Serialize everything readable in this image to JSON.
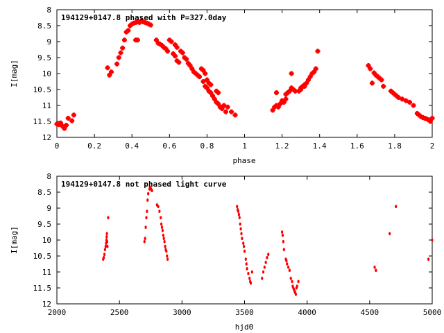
{
  "chart_data": [
    {
      "type": "scatter",
      "title": "194129+0147.8 phased with P=327.0day",
      "xlabel": "phase",
      "ylabel": "I[mag]",
      "xlim": [
        0,
        2
      ],
      "ylim": [
        12,
        8
      ],
      "y_inverted": true,
      "grid": false,
      "legend": "none",
      "marker_color": "#ff0000",
      "marker": "filled-square",
      "xticks": [
        0,
        0.2,
        0.4,
        0.6,
        0.8,
        1,
        1.2,
        1.4,
        1.6,
        1.8,
        2
      ],
      "xtick_labels": [
        "0",
        "0.2",
        "0.4",
        "0.6",
        "0.8",
        "1",
        "1.2",
        "1.4",
        "1.6",
        "1.8",
        "2"
      ],
      "yticks": [
        8,
        8.5,
        9,
        9.5,
        10,
        10.5,
        11,
        11.5,
        12
      ],
      "ytick_labels": [
        "8",
        "8.5",
        "9",
        "9.5",
        "10",
        "10.5",
        "11",
        "11.5",
        "12"
      ],
      "points": [
        [
          0.0,
          11.58
        ],
        [
          0.01,
          11.6
        ],
        [
          0.02,
          11.55
        ],
        [
          0.03,
          11.65
        ],
        [
          0.04,
          11.72
        ],
        [
          0.05,
          11.62
        ],
        [
          0.06,
          11.4
        ],
        [
          0.08,
          11.48
        ],
        [
          0.09,
          11.3
        ],
        [
          0.27,
          9.82
        ],
        [
          0.28,
          10.05
        ],
        [
          0.29,
          9.95
        ],
        [
          0.32,
          9.7
        ],
        [
          0.33,
          9.5
        ],
        [
          0.34,
          9.35
        ],
        [
          0.35,
          9.2
        ],
        [
          0.36,
          8.95
        ],
        [
          0.37,
          8.7
        ],
        [
          0.38,
          8.65
        ],
        [
          0.39,
          8.5
        ],
        [
          0.4,
          8.45
        ],
        [
          0.41,
          8.42
        ],
        [
          0.42,
          8.4
        ],
        [
          0.43,
          8.38
        ],
        [
          0.44,
          8.4
        ],
        [
          0.45,
          8.35
        ],
        [
          0.46,
          8.38
        ],
        [
          0.47,
          8.4
        ],
        [
          0.48,
          8.42
        ],
        [
          0.49,
          8.45
        ],
        [
          0.5,
          8.48
        ],
        [
          0.42,
          8.95
        ],
        [
          0.43,
          8.95
        ],
        [
          0.53,
          8.95
        ],
        [
          0.54,
          9.05
        ],
        [
          0.55,
          9.08
        ],
        [
          0.56,
          9.12
        ],
        [
          0.57,
          9.18
        ],
        [
          0.58,
          9.22
        ],
        [
          0.59,
          9.3
        ],
        [
          0.6,
          8.95
        ],
        [
          0.61,
          9.0
        ],
        [
          0.62,
          9.38
        ],
        [
          0.63,
          9.45
        ],
        [
          0.64,
          9.6
        ],
        [
          0.65,
          9.65
        ],
        [
          0.63,
          9.1
        ],
        [
          0.64,
          9.18
        ],
        [
          0.66,
          9.3
        ],
        [
          0.67,
          9.35
        ],
        [
          0.68,
          9.5
        ],
        [
          0.69,
          9.55
        ],
        [
          0.7,
          9.68
        ],
        [
          0.71,
          9.75
        ],
        [
          0.72,
          9.85
        ],
        [
          0.73,
          9.95
        ],
        [
          0.74,
          10.0
        ],
        [
          0.75,
          10.05
        ],
        [
          0.76,
          10.1
        ],
        [
          0.77,
          9.85
        ],
        [
          0.78,
          9.9
        ],
        [
          0.79,
          10.0
        ],
        [
          0.8,
          10.2
        ],
        [
          0.81,
          10.3
        ],
        [
          0.82,
          10.35
        ],
        [
          0.78,
          10.25
        ],
        [
          0.79,
          10.4
        ],
        [
          0.8,
          10.45
        ],
        [
          0.81,
          10.55
        ],
        [
          0.82,
          10.6
        ],
        [
          0.83,
          10.7
        ],
        [
          0.84,
          10.8
        ],
        [
          0.85,
          10.55
        ],
        [
          0.86,
          10.6
        ],
        [
          0.85,
          10.9
        ],
        [
          0.86,
          10.95
        ],
        [
          0.87,
          11.05
        ],
        [
          0.88,
          11.1
        ],
        [
          0.89,
          11.0
        ],
        [
          0.9,
          11.2
        ],
        [
          0.91,
          11.05
        ],
        [
          0.93,
          11.2
        ],
        [
          0.95,
          11.3
        ],
        [
          1.15,
          11.15
        ],
        [
          1.16,
          11.05
        ],
        [
          1.17,
          11.0
        ],
        [
          1.17,
          10.6
        ],
        [
          1.18,
          11.05
        ],
        [
          1.19,
          10.95
        ],
        [
          1.2,
          10.85
        ],
        [
          1.21,
          10.9
        ],
        [
          1.22,
          10.8
        ],
        [
          1.22,
          10.65
        ],
        [
          1.23,
          10.6
        ],
        [
          1.24,
          10.55
        ],
        [
          1.25,
          10.45
        ],
        [
          1.26,
          10.5
        ],
        [
          1.27,
          10.55
        ],
        [
          1.25,
          10.0
        ],
        [
          1.29,
          10.55
        ],
        [
          1.3,
          10.45
        ],
        [
          1.31,
          10.4
        ],
        [
          1.32,
          10.35
        ],
        [
          1.33,
          10.3
        ],
        [
          1.34,
          10.2
        ],
        [
          1.35,
          10.1
        ],
        [
          1.36,
          10.0
        ],
        [
          1.37,
          9.95
        ],
        [
          1.38,
          9.85
        ],
        [
          1.3,
          10.5
        ],
        [
          1.32,
          10.4
        ],
        [
          1.39,
          9.3
        ],
        [
          1.66,
          9.75
        ],
        [
          1.67,
          9.85
        ],
        [
          1.68,
          10.3
        ],
        [
          1.69,
          9.98
        ],
        [
          1.7,
          10.05
        ],
        [
          1.71,
          10.1
        ],
        [
          1.72,
          10.15
        ],
        [
          1.73,
          10.2
        ],
        [
          1.74,
          10.4
        ],
        [
          1.78,
          10.55
        ],
        [
          1.79,
          10.6
        ],
        [
          1.8,
          10.65
        ],
        [
          1.81,
          10.7
        ],
        [
          1.82,
          10.75
        ],
        [
          1.84,
          10.8
        ],
        [
          1.86,
          10.85
        ],
        [
          1.88,
          10.9
        ],
        [
          1.9,
          11.0
        ],
        [
          1.92,
          11.25
        ],
        [
          1.93,
          11.3
        ],
        [
          1.94,
          11.35
        ],
        [
          1.95,
          11.38
        ],
        [
          1.96,
          11.4
        ],
        [
          1.97,
          11.42
        ],
        [
          1.98,
          11.45
        ],
        [
          1.99,
          11.5
        ],
        [
          2.0,
          11.4
        ]
      ]
    },
    {
      "type": "scatter",
      "title": "194129+0147.8 not phased light curve",
      "xlabel": "hjd0",
      "ylabel": "I[mag]",
      "xlim": [
        2000,
        5000
      ],
      "ylim": [
        12,
        8
      ],
      "y_inverted": true,
      "grid": false,
      "legend": "none",
      "marker_color": "#ff0000",
      "marker": "dot",
      "xticks": [
        2000,
        2500,
        3000,
        3500,
        4000,
        4500,
        5000
      ],
      "xtick_labels": [
        "2000",
        "2500",
        "3000",
        "3500",
        "4000",
        "4500",
        "5000"
      ],
      "yticks": [
        8,
        8.5,
        9,
        9.5,
        10,
        10.5,
        11,
        11.5,
        12
      ],
      "ytick_labels": [
        "8",
        "8.5",
        "9",
        "9.5",
        "10",
        "10.5",
        "11",
        "11.5",
        "12"
      ],
      "points": [
        [
          2370,
          10.6
        ],
        [
          2375,
          10.55
        ],
        [
          2380,
          10.45
        ],
        [
          2385,
          10.3
        ],
        [
          2390,
          10.2
        ],
        [
          2393,
          10.1
        ],
        [
          2396,
          10.0
        ],
        [
          2398,
          9.9
        ],
        [
          2400,
          9.8
        ],
        [
          2402,
          10.05
        ],
        [
          2404,
          10.2
        ],
        [
          2410,
          9.3
        ],
        [
          2700,
          10.05
        ],
        [
          2705,
          9.95
        ],
        [
          2710,
          9.6
        ],
        [
          2715,
          9.3
        ],
        [
          2720,
          9.1
        ],
        [
          2725,
          8.75
        ],
        [
          2730,
          8.55
        ],
        [
          2740,
          8.4
        ],
        [
          2745,
          8.35
        ],
        [
          2750,
          8.38
        ],
        [
          2755,
          8.42
        ],
        [
          2760,
          8.45
        ],
        [
          2800,
          8.9
        ],
        [
          2810,
          8.95
        ],
        [
          2820,
          9.1
        ],
        [
          2830,
          9.3
        ],
        [
          2835,
          9.5
        ],
        [
          2840,
          9.6
        ],
        [
          2845,
          9.7
        ],
        [
          2850,
          9.85
        ],
        [
          2855,
          9.95
        ],
        [
          2860,
          10.05
        ],
        [
          2865,
          10.2
        ],
        [
          2870,
          10.3
        ],
        [
          2875,
          10.35
        ],
        [
          2880,
          10.5
        ],
        [
          2885,
          10.6
        ],
        [
          3440,
          8.95
        ],
        [
          3445,
          9.05
        ],
        [
          3450,
          9.1
        ],
        [
          3455,
          9.2
        ],
        [
          3460,
          9.3
        ],
        [
          3465,
          9.5
        ],
        [
          3470,
          9.65
        ],
        [
          3475,
          9.8
        ],
        [
          3480,
          9.95
        ],
        [
          3490,
          10.1
        ],
        [
          3495,
          10.2
        ],
        [
          3500,
          10.35
        ],
        [
          3510,
          10.6
        ],
        [
          3515,
          10.75
        ],
        [
          3520,
          10.9
        ],
        [
          3530,
          11.05
        ],
        [
          3540,
          11.2
        ],
        [
          3545,
          11.3
        ],
        [
          3550,
          11.35
        ],
        [
          3560,
          11.0
        ],
        [
          3640,
          11.2
        ],
        [
          3650,
          11.0
        ],
        [
          3660,
          10.85
        ],
        [
          3670,
          10.7
        ],
        [
          3680,
          10.55
        ],
        [
          3690,
          10.45
        ],
        [
          3800,
          9.75
        ],
        [
          3805,
          9.85
        ],
        [
          3810,
          10.05
        ],
        [
          3815,
          10.3
        ],
        [
          3830,
          10.6
        ],
        [
          3835,
          10.65
        ],
        [
          3840,
          10.75
        ],
        [
          3850,
          10.85
        ],
        [
          3860,
          10.95
        ],
        [
          3870,
          11.2
        ],
        [
          3880,
          11.3
        ],
        [
          3885,
          11.45
        ],
        [
          3890,
          11.5
        ],
        [
          3895,
          11.55
        ],
        [
          3900,
          11.6
        ],
        [
          3905,
          11.65
        ],
        [
          3910,
          11.7
        ],
        [
          3915,
          11.5
        ],
        [
          3920,
          11.45
        ],
        [
          3930,
          11.3
        ],
        [
          4540,
          10.85
        ],
        [
          4550,
          10.95
        ],
        [
          4660,
          9.8
        ],
        [
          4710,
          8.95
        ],
        [
          4970,
          10.6
        ],
        [
          5000,
          10.0
        ]
      ]
    }
  ]
}
